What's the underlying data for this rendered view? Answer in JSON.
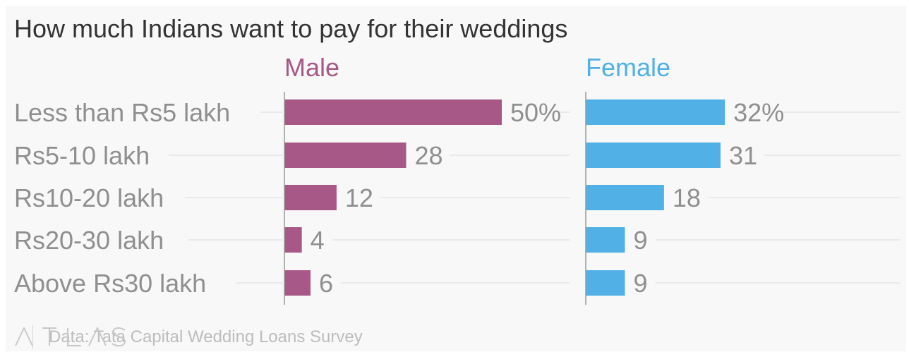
{
  "title": "How much Indians want to pay for their weddings",
  "source": "Data: Tata Capital Wedding Loans Survey",
  "brand": "ATLAS",
  "chart_data": {
    "type": "bar",
    "orientation": "horizontal",
    "categories": [
      "Less than Rs5 lakh",
      "Rs5-10 lakh",
      "Rs10-20 lakh",
      "Rs20-30 lakh",
      "Above Rs30 lakh"
    ],
    "series": [
      {
        "name": "Male",
        "values": [
          50,
          28,
          12,
          4,
          6
        ],
        "labels": [
          "50%",
          "28",
          "12",
          "4",
          "6"
        ],
        "color": "#a85886"
      },
      {
        "name": "Female",
        "values": [
          32,
          31,
          18,
          9,
          9
        ],
        "labels": [
          "32%",
          "31",
          "18",
          "9",
          "9"
        ],
        "color": "#51b1e6"
      }
    ],
    "unit": "%",
    "grid": true,
    "legend": "panel headers"
  }
}
